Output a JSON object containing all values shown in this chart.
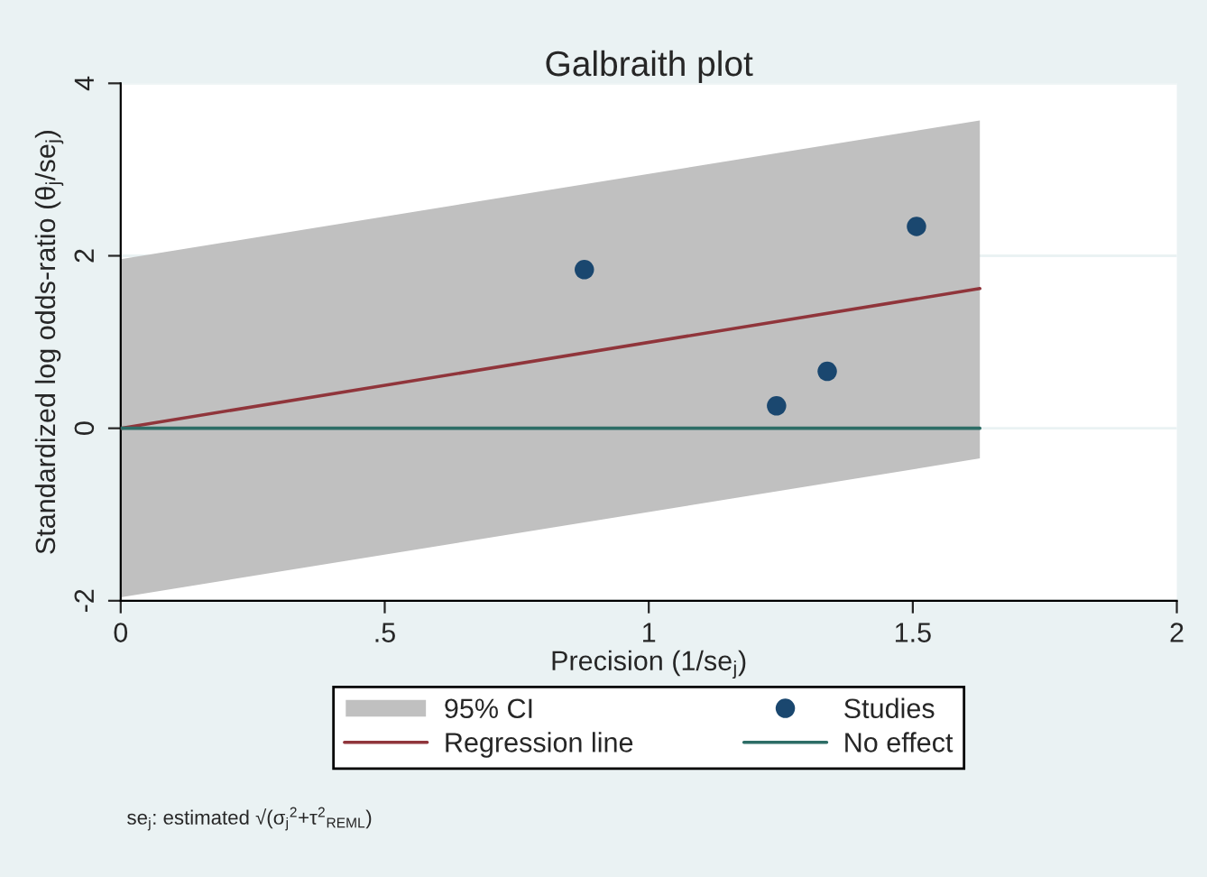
{
  "chart_data": {
    "type": "scatter",
    "title": "Galbraith plot",
    "xlabel": "Precision (1/se$_{j}$)",
    "ylabel": "Standardized log odds-ratio (θ$_{j}$/se$_{j}$)",
    "xlim": [
      0,
      2
    ],
    "xticks": [
      0,
      {
        "value": 0.5,
        "label": ".5"
      },
      1,
      1.5,
      2
    ],
    "ylim": [
      -2,
      4
    ],
    "yticks": [
      -2,
      0,
      2,
      4
    ],
    "grid": "y",
    "legend": "bottom",
    "series": [
      {
        "name": "95% CI",
        "type": "area",
        "color": "#c0c0c0",
        "x": [
          0,
          1.627
        ],
        "values": [
          null,
          null
        ],
        "lower": [
          -1.96,
          -0.35
        ],
        "upper": [
          1.96,
          3.57
        ]
      },
      {
        "name": "Studies",
        "color": "#1a476f",
        "marker": "circle",
        "x": [
          0.878,
          1.242,
          1.338,
          1.507
        ],
        "values": [
          1.84,
          0.26,
          0.66,
          2.34
        ]
      },
      {
        "name": "Regression line",
        "type": "line",
        "color": "#90353b",
        "x": [
          0,
          1.627
        ],
        "values": [
          0,
          1.62
        ]
      },
      {
        "name": "No effect",
        "type": "line",
        "color": "#2d6d66",
        "x": [
          0,
          1.627
        ],
        "values": [
          0,
          0
        ]
      }
    ],
    "annotations": [
      "se$_{j}$: estimated √(σ$_{j}$$^{2}$+τ$^{2}$$_{REML}$)"
    ]
  }
}
